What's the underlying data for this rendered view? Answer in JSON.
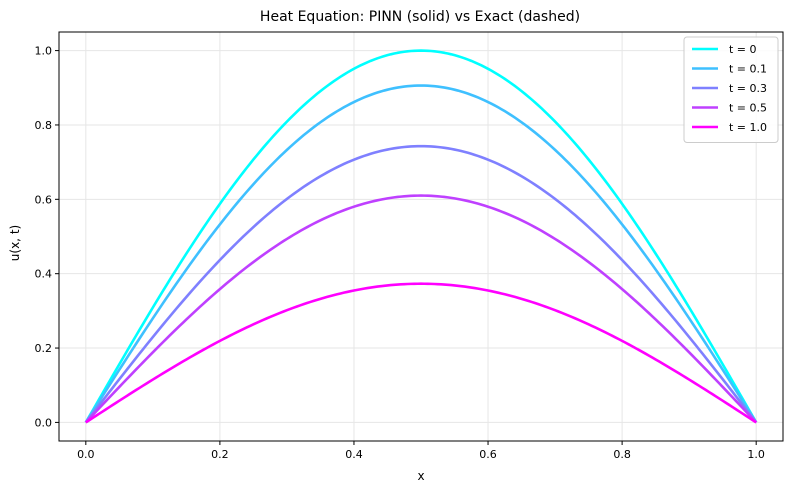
{
  "chart_data": {
    "type": "line",
    "title": "Heat Equation: PINN (solid) vs Exact (dashed)",
    "xlabel": "x",
    "ylabel": "u(x, t)",
    "xlim": [
      -0.04,
      1.04
    ],
    "ylim": [
      -0.05,
      1.05
    ],
    "xticks": [
      "0.0",
      "0.2",
      "0.4",
      "0.6",
      "0.8",
      "1.0"
    ],
    "yticks": [
      "0.0",
      "0.2",
      "0.4",
      "0.6",
      "0.8",
      "1.0"
    ],
    "grid": true,
    "legend_position": "top-right",
    "function": "u(x,t) = A(t) * sin(pi * x)",
    "series": [
      {
        "name": "t = 0",
        "amplitude": 1.0,
        "color": "#00ffff"
      },
      {
        "name": "t = 0.1",
        "amplitude": 0.906,
        "color": "#3fc0ff"
      },
      {
        "name": "t = 0.3",
        "amplitude": 0.743,
        "color": "#7f80ff"
      },
      {
        "name": "t = 0.5",
        "amplitude": 0.61,
        "color": "#bf40ff"
      },
      {
        "name": "t = 1.0",
        "amplitude": 0.373,
        "color": "#ff00ff"
      }
    ]
  }
}
